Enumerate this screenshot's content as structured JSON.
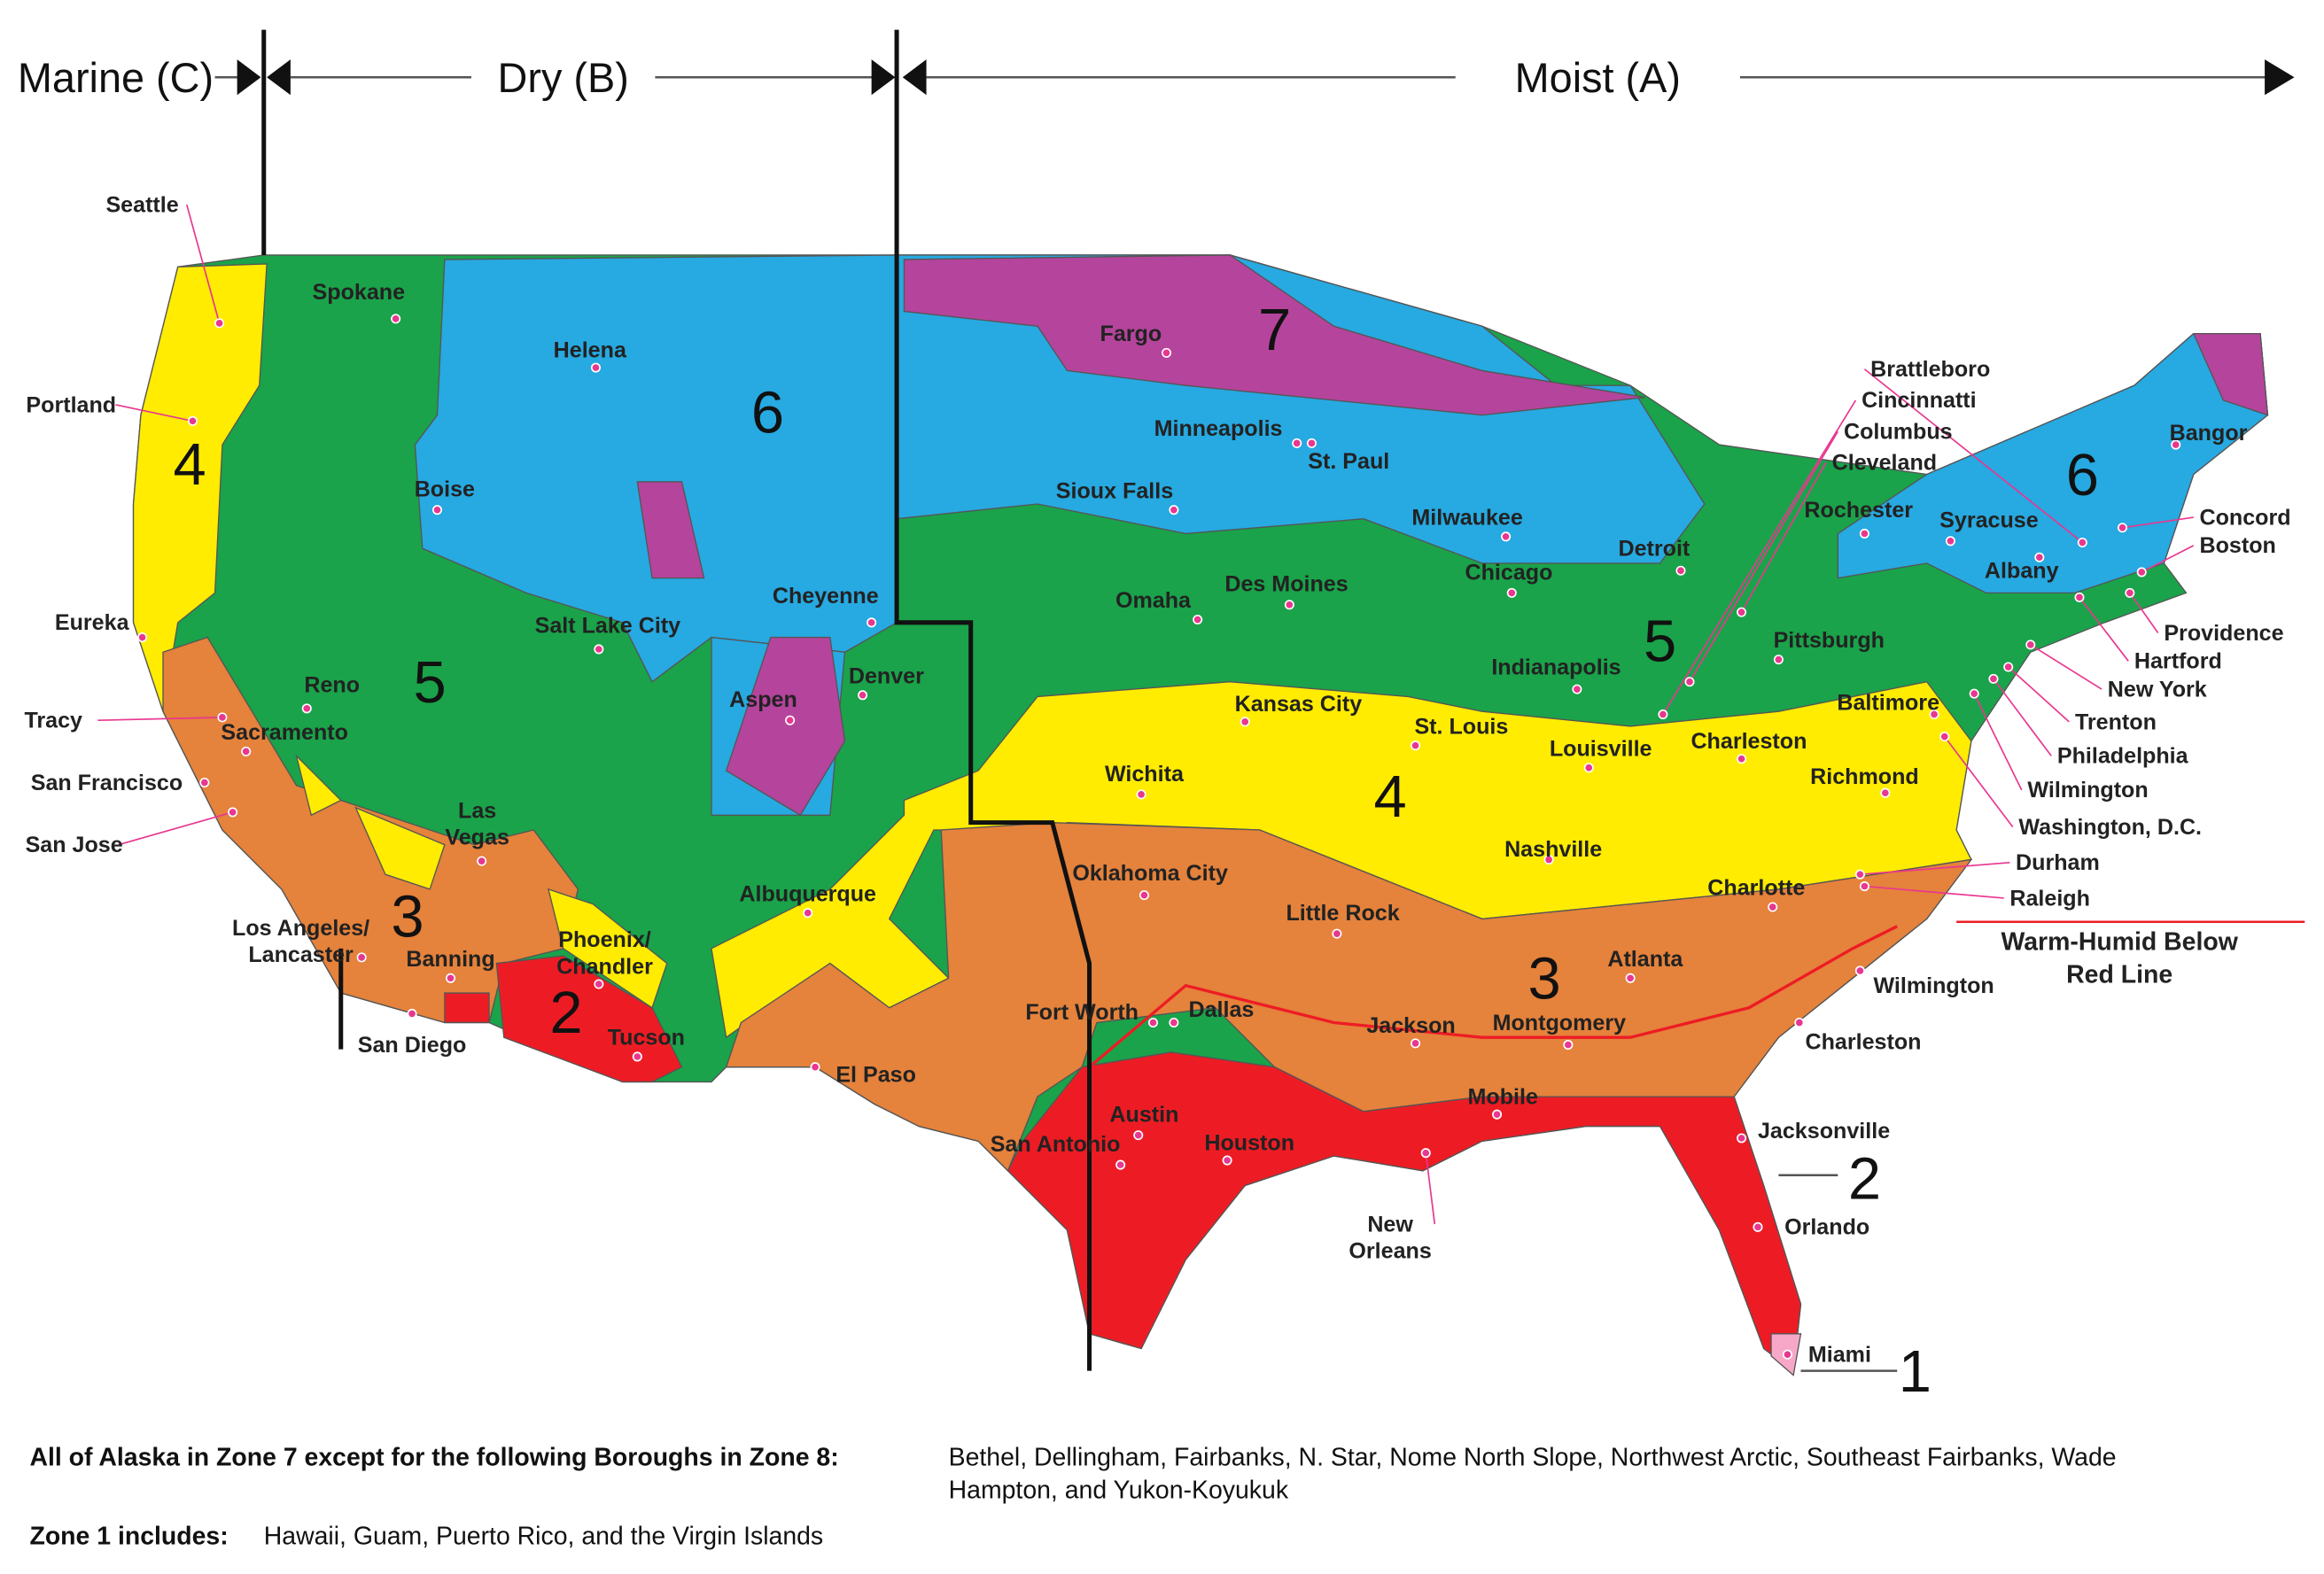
{
  "header": {
    "zones": [
      "Marine (C)",
      "Dry (B)",
      "Moist (A)"
    ]
  },
  "map": {
    "zone_labels": [
      "7",
      "6",
      "6",
      "4",
      "5",
      "5",
      "4",
      "3",
      "3",
      "2",
      "2",
      "1"
    ],
    "cities": [
      "Seattle",
      "Spokane",
      "Helena",
      "Portland",
      "Boise",
      "Eureka",
      "Reno",
      "Tracy",
      "Sacramento",
      "San Francisco",
      "San Jose",
      "Salt Lake City",
      "Cheyenne",
      "Aspen",
      "Denver",
      [
        "Las",
        "Vegas"
      ],
      [
        "Los Angeles/",
        "Lancaster"
      ],
      "Banning",
      "San Diego",
      [
        "Phoenix/",
        "Chandler"
      ],
      "Tucson",
      "Albuquerque",
      "El Paso",
      "Fargo",
      "Minneapolis",
      "St. Paul",
      "Sioux Falls",
      "Milwaukee",
      "Omaha",
      "Des Moines",
      "Chicago",
      "Detroit",
      "Kansas City",
      "St. Louis",
      "Indianapolis",
      "Wichita",
      "Louisville",
      "Charleston",
      "Nashville",
      "Richmond",
      "Oklahoma City",
      "Little Rock",
      "Charlotte",
      "Atlanta",
      "Jackson",
      "Montgomery",
      "Fort Worth",
      "Dallas",
      "Austin",
      "San Antonio",
      "Houston",
      "Mobile",
      [
        "New",
        "Orleans"
      ],
      "Jacksonville",
      "Orlando",
      "Miami",
      "Brattleboro",
      "Cincinnatti",
      "Columbus",
      "Cleveland",
      "Rochester",
      "Syracuse",
      "Albany",
      "Bangor",
      "Concord",
      "Boston",
      "Providence",
      "Hartford",
      "New York",
      "Trenton",
      "Philadelphia",
      "Wilmington",
      "Washington, D.C.",
      "Baltimore",
      "Pittsburgh",
      "Durham",
      "Raleigh",
      "Wilmington",
      "Charleston"
    ],
    "red_line_note": [
      "Warm-Humid Below",
      "Red Line"
    ]
  },
  "footer": {
    "alaska_label": "All of Alaska in Zone 7 except for the following Boroughs in Zone 8:",
    "alaska_text": [
      "Bethel, Dellingham, Fairbanks, N. Star, Nome North Slope, Northwest Arctic, Southeast Fairbanks, Wade",
      "Hampton, and Yukon-Koyukuk"
    ],
    "zone1_label": "Zone 1 includes:",
    "zone1_text": "Hawaii, Guam, Puerto Rico, and the Virgin Islands"
  }
}
